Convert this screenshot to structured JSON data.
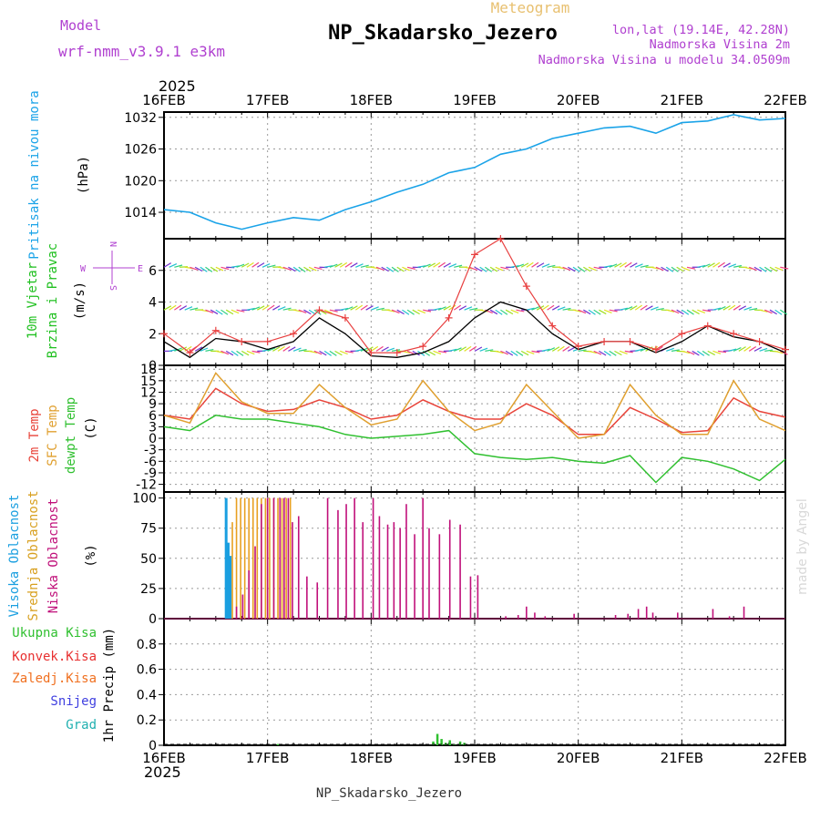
{
  "header": {
    "model_label": "Model",
    "model_name": "wrf-nmm_v3.9.1 e3km",
    "meteogram_label": "Meteogram",
    "station": "NP_Skadarsko_Jezero",
    "lonlat": "lon,lat (19.14E, 42.28N)",
    "elevation": "Nadmorska Visina 2m",
    "model_elevation": "Nadmorska Visina u modelu 34.0509m"
  },
  "footer": {
    "station": "NP_Skadarsko_Jezero",
    "credit": "made by Angel"
  },
  "time_axis": {
    "year_top": "2025",
    "year_bottom": "2025",
    "labels": [
      "16FEB",
      "17FEB",
      "18FEB",
      "19FEB",
      "20FEB",
      "21FEB",
      "22FEB"
    ]
  },
  "colors": {
    "pressure": "#1aa3e8",
    "temp2m": "#e8443a",
    "sfc_temp": "#e0a030",
    "dewpoint": "#30c030",
    "high_cloud": "#1a9fe0",
    "mid_cloud": "#e8a020",
    "low_cloud": "#c0107a",
    "total_precip": "#30c030",
    "conv_precip": "#e83030",
    "frozen_precip": "#f07020",
    "snow": "#4040e0",
    "hail": "#20b0b0",
    "wind_ylabel": "#20c020",
    "wind_ylabel2": "#20c020",
    "compass": "#b040d0"
  },
  "chart_data": [
    {
      "type": "line",
      "title": "Pritisak na nivou mora",
      "ylabel": "Pritisak na nivou mora",
      "unit": "(hPa)",
      "ylim": [
        1009,
        1033
      ],
      "yticks": [
        1014,
        1020,
        1026,
        1032
      ],
      "x": [
        0,
        0.25,
        0.5,
        0.75,
        1,
        1.25,
        1.5,
        1.75,
        2,
        2.25,
        2.5,
        2.75,
        3,
        3.25,
        3.5,
        3.75,
        4,
        4.25,
        4.5,
        4.75,
        5,
        5.25,
        5.5,
        5.75,
        6
      ],
      "series": [
        {
          "name": "MSLP",
          "values": [
            1014.5,
            1014,
            1012,
            1010.8,
            1012,
            1013,
            1012.5,
            1014.5,
            1016,
            1017.8,
            1019.3,
            1021.5,
            1022.5,
            1025,
            1026,
            1028,
            1029,
            1030,
            1030.3,
            1029,
            1031,
            1031.3,
            1032.5,
            1031.5,
            1031.8
          ]
        }
      ]
    },
    {
      "type": "line",
      "title": "10m Vjetar Brzina i Pravac",
      "ylabel": "10m Vjetar",
      "ylabel2": "Brzina i Pravac",
      "unit": "(m/s)",
      "compass": {
        "north": "N",
        "west": "W",
        "east": "E",
        "south": "S"
      },
      "ylim": [
        0,
        8
      ],
      "yticks": [
        0,
        2,
        4,
        6
      ],
      "x": [
        0,
        0.25,
        0.5,
        0.75,
        1,
        1.25,
        1.5,
        1.75,
        2,
        2.25,
        2.5,
        2.75,
        3,
        3.25,
        3.5,
        3.75,
        4,
        4.25,
        4.5,
        4.75,
        5,
        5.25,
        5.5,
        5.75,
        6
      ],
      "series": [
        {
          "name": "speed",
          "values": [
            1.5,
            0.5,
            1.7,
            1.5,
            1,
            1.5,
            3,
            2,
            0.6,
            0.5,
            0.8,
            1.5,
            3,
            4,
            3.5,
            2,
            1,
            1.5,
            1.5,
            0.8,
            1.5,
            2.5,
            1.8,
            1.5,
            0.8
          ]
        },
        {
          "name": "gust",
          "values": [
            2,
            0.8,
            2.2,
            1.5,
            1.5,
            2,
            3.5,
            3,
            0.8,
            0.8,
            1.2,
            3,
            7,
            8,
            5,
            2.5,
            1.2,
            1.5,
            1.5,
            1,
            2,
            2.5,
            2,
            1.5,
            1
          ]
        }
      ],
      "barb_rows": [
        0.9,
        3.5,
        6.2
      ]
    },
    {
      "type": "line",
      "title": "Temperature",
      "ylabel": "2m Temp",
      "ylabel2": "SFC Temp",
      "ylabel3": "dewpt Temp",
      "unit": "(C)",
      "ylim": [
        -14,
        19
      ],
      "yticks": [
        -12,
        -9,
        -6,
        -3,
        0,
        3,
        6,
        9,
        12,
        15,
        18
      ],
      "x": [
        0,
        0.25,
        0.5,
        0.75,
        1,
        1.25,
        1.5,
        1.75,
        2,
        2.25,
        2.5,
        2.75,
        3,
        3.25,
        3.5,
        3.75,
        4,
        4.25,
        4.5,
        4.75,
        5,
        5.25,
        5.5,
        5.75,
        6
      ],
      "series": [
        {
          "name": "2m Temp",
          "values": [
            6,
            5,
            13,
            9,
            7,
            7.5,
            10,
            8,
            5,
            6,
            10,
            7,
            5,
            5,
            9,
            6,
            1,
            1,
            8,
            5,
            1.5,
            2,
            10.5,
            7,
            5.5
          ]
        },
        {
          "name": "SFC Temp",
          "values": [
            6,
            4,
            17,
            9.5,
            6.5,
            6.5,
            14,
            8,
            3.5,
            5,
            15,
            7,
            2,
            4,
            14,
            7,
            0,
            1,
            14,
            6,
            1,
            1,
            15,
            5,
            2
          ]
        },
        {
          "name": "dewpt Temp",
          "values": [
            3,
            2,
            6,
            5,
            5,
            4,
            3,
            1,
            0,
            0.5,
            1,
            2,
            -4,
            -5,
            -5.5,
            -5,
            -6,
            -6.5,
            -4.5,
            -11.5,
            -5,
            -6,
            -8,
            -11,
            -5.5
          ]
        }
      ]
    },
    {
      "type": "bar",
      "title": "Oblacnost",
      "ylabel": "Visoka Oblacnost",
      "ylabel2": "Srednja Oblacnost",
      "ylabel3": "Niska Oblacnost",
      "unit": "(%)",
      "ylim": [
        0,
        105
      ],
      "yticks": [
        0,
        25,
        50,
        75,
        100
      ],
      "series": [
        {
          "name": "Visoka Oblacnost",
          "x": [
            0.6,
            0.62,
            0.64
          ],
          "values": [
            100,
            63,
            52
          ]
        },
        {
          "name": "Srednja Oblacnost",
          "x": [
            0.66,
            0.7,
            0.74,
            0.78,
            0.82,
            0.86,
            0.9,
            0.94,
            0.98,
            1.02,
            1.06,
            1.1,
            1.14,
            1.18,
            1.22
          ],
          "values": [
            80,
            100,
            100,
            100,
            100,
            100,
            100,
            100,
            100,
            100,
            100,
            100,
            100,
            100,
            100
          ]
        },
        {
          "name": "Niska Oblacnost",
          "x": [
            0.7,
            0.76,
            0.82,
            0.88,
            0.94,
            1.0,
            1.06,
            1.12,
            1.16,
            1.2,
            1.24,
            1.3,
            1.38,
            1.48,
            1.58,
            1.68,
            1.76,
            1.84,
            1.92,
            2.02,
            2.08,
            2.16,
            2.22,
            2.28,
            2.34,
            2.42,
            2.5,
            2.56,
            2.66,
            2.76,
            2.86,
            2.96,
            3.03,
            3.3,
            3.42,
            3.5,
            3.58,
            3.68,
            3.96,
            4.36,
            4.48,
            4.58,
            4.66,
            4.72,
            4.96,
            5.3,
            5.46,
            5.6
          ],
          "values": [
            10,
            20,
            40,
            60,
            95,
            100,
            100,
            100,
            100,
            100,
            80,
            85,
            35,
            30,
            100,
            90,
            95,
            100,
            80,
            100,
            85,
            78,
            80,
            75,
            95,
            70,
            100,
            75,
            70,
            82,
            78,
            35,
            36,
            2,
            3,
            10,
            5,
            2,
            4,
            3,
            4,
            8,
            10,
            5,
            5,
            8,
            2,
            10
          ]
        }
      ]
    },
    {
      "type": "bar",
      "title": "1hr Precip",
      "ylabel": "1hr Precip (mm)",
      "legend": [
        "Ukupna Kisa",
        "Konvek.Kisa",
        "Zaledj.Kisa",
        "Snijeg",
        "Grad"
      ],
      "ylim": [
        0,
        1.0
      ],
      "yticks": [
        0,
        0.2,
        0.4,
        0.6,
        0.8
      ],
      "x": [
        1.1,
        2.6,
        2.64,
        2.68,
        2.72,
        2.76,
        2.8,
        2.86,
        2.9
      ],
      "series": [
        {
          "name": "Ukupna Kisa",
          "values": [
            0.01,
            0.03,
            0.09,
            0.05,
            0.02,
            0.04,
            0.01,
            0.03,
            0.02
          ]
        }
      ]
    }
  ]
}
